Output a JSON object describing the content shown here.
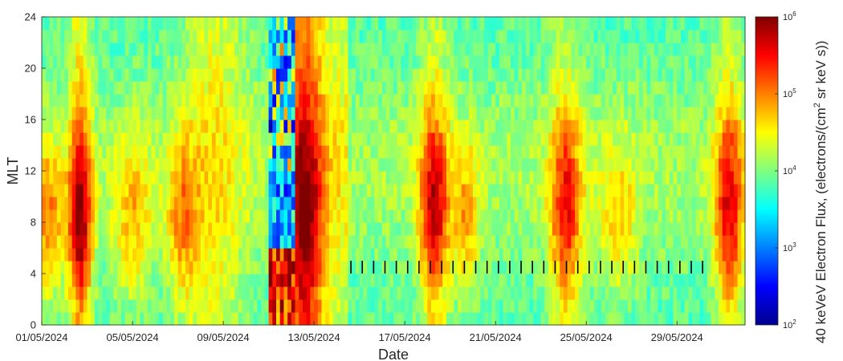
{
  "chart_data": {
    "type": "heatmap",
    "xlabel": "Date",
    "ylabel": "MLT",
    "x_tick_labels": [
      "01/05/2024",
      "05/05/2024",
      "09/05/2024",
      "13/05/2024",
      "17/05/2024",
      "21/05/2024",
      "25/05/2024",
      "29/05/2024"
    ],
    "x_range_days": [
      0,
      31
    ],
    "x_start_date": "01/05/2024",
    "ylim": [
      0,
      24
    ],
    "y_ticks": [
      0,
      4,
      8,
      12,
      16,
      20,
      24
    ],
    "colorbar": {
      "scale": "log",
      "range": [
        100,
        1000000
      ],
      "tick_bases": [
        "10",
        "10",
        "10",
        "10",
        "10"
      ],
      "tick_exponents": [
        "2",
        "3",
        "4",
        "5",
        "6"
      ],
      "tick_values": [
        100,
        1000,
        10000,
        100000,
        1000000
      ],
      "label_prefix": "40 keVeV Electron Flux, (electrons/(cm",
      "label_sup": "2",
      "label_suffix": " sr keV s))",
      "colormap": "jet"
    },
    "grid": false,
    "background_flux_log10": 4.0,
    "events": [
      {
        "name": "early May enhancement",
        "start_day": 1.3,
        "end_day": 2.1,
        "peak_log10": 5.3
      },
      {
        "name": "storm main phase",
        "start_day": 10.0,
        "end_day": 11.1,
        "peak_log10": 2.4
      },
      {
        "name": "storm recovery",
        "start_day": 11.1,
        "end_day": 13.5,
        "peak_log10": 5.7
      },
      {
        "name": "mid-May injection",
        "start_day": 16.8,
        "end_day": 18.0,
        "peak_log10": 5.4
      },
      {
        "name": "late-May injection",
        "start_day": 22.3,
        "end_day": 23.8,
        "peak_log10": 5.0
      },
      {
        "name": "end-May injection",
        "start_day": 29.7,
        "end_day": 31.0,
        "peak_log10": 5.2
      }
    ],
    "data_gap_mlt": 4.5
  }
}
